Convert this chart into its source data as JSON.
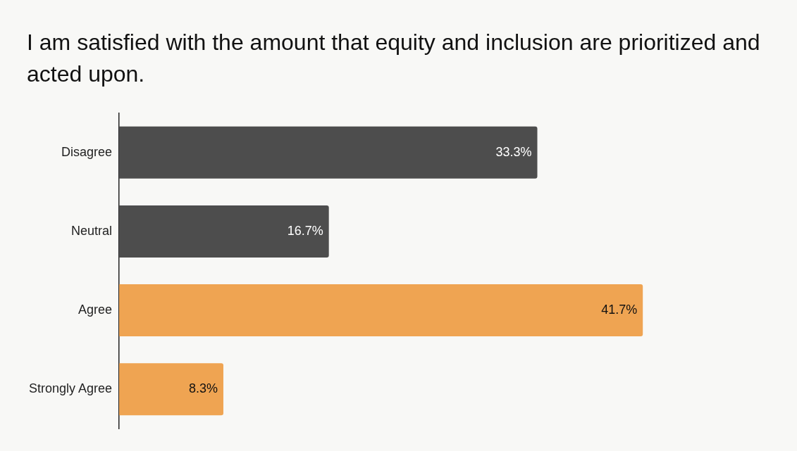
{
  "chart_data": {
    "type": "bar",
    "orientation": "horizontal",
    "title": "I am satisfied with the amount that equity and inclusion are prioritized and acted upon.",
    "categories": [
      "Disagree",
      "Neutral",
      "Agree",
      "Strongly Agree"
    ],
    "values": [
      33.3,
      16.7,
      41.7,
      8.3
    ],
    "colors": [
      "#4d4d4d",
      "#4d4d4d",
      "#efa452",
      "#efa452"
    ],
    "value_labels": [
      "33.3%",
      "16.7%",
      "41.7%",
      "8.3%"
    ],
    "grid": false,
    "legend": false,
    "tick_labels": "y"
  }
}
